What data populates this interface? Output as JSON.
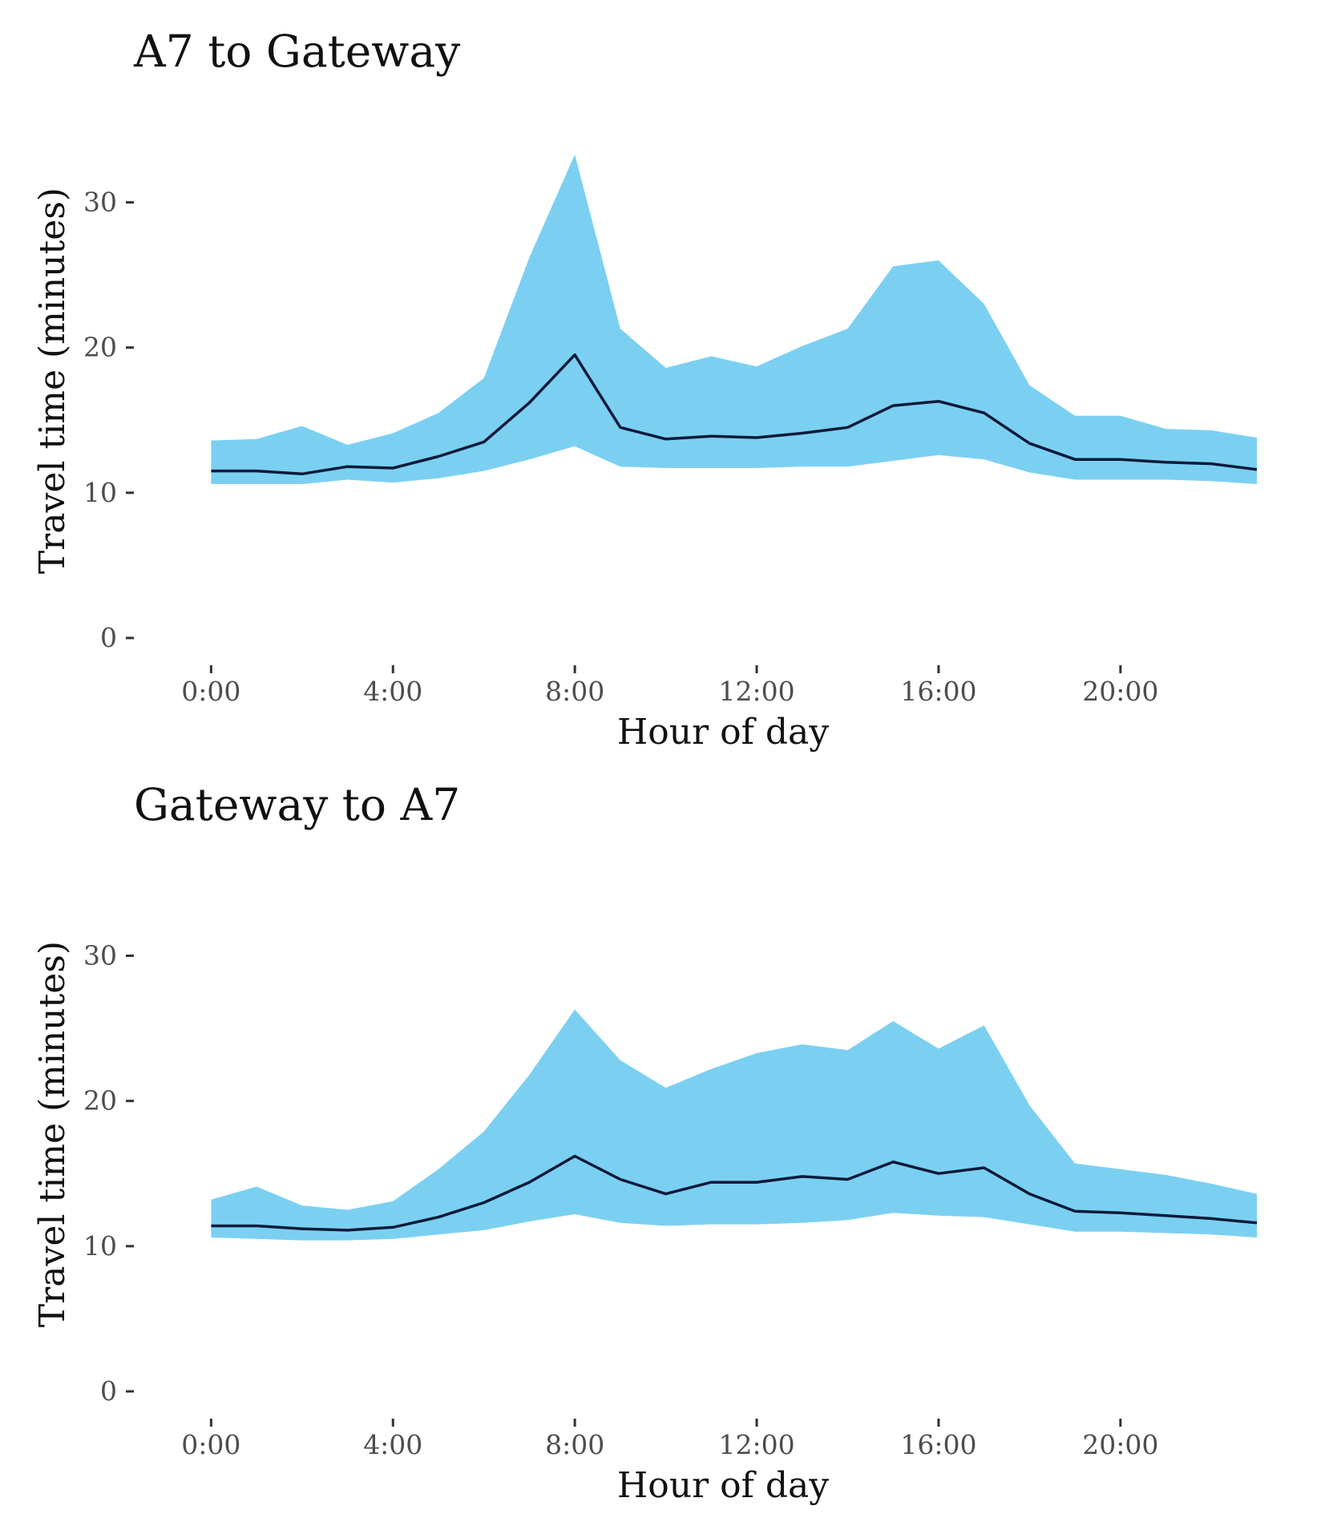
{
  "chart_data": [
    {
      "type": "area",
      "title": "A7 to Gateway",
      "xlabel": "Hour of day",
      "ylabel": "Travel time (minutes)",
      "x_tick_labels": [
        "0:00",
        "4:00",
        "8:00",
        "12:00",
        "16:00",
        "20:00"
      ],
      "x_tick_values": [
        0,
        4,
        8,
        12,
        16,
        20
      ],
      "y_ticks": [
        0,
        10,
        20,
        30
      ],
      "xlim": [
        -0.5,
        23
      ],
      "ylim": [
        0,
        34
      ],
      "grid": false,
      "x": [
        0,
        1,
        2,
        3,
        4,
        5,
        6,
        7,
        8,
        9,
        10,
        11,
        12,
        13,
        14,
        15,
        16,
        17,
        18,
        19,
        20,
        21,
        22,
        23
      ],
      "series": [
        {
          "role": "band",
          "color": "#7bd0f2",
          "lower": [
            10.6,
            10.6,
            10.6,
            10.9,
            10.7,
            11.0,
            11.5,
            12.3,
            13.2,
            11.8,
            11.7,
            11.7,
            11.7,
            11.8,
            11.8,
            12.2,
            12.6,
            12.3,
            11.4,
            10.9,
            10.9,
            10.9,
            10.8,
            10.6
          ],
          "upper": [
            13.6,
            13.7,
            14.6,
            13.3,
            14.1,
            15.5,
            17.9,
            26.2,
            33.3,
            21.3,
            18.6,
            19.4,
            18.7,
            20.1,
            21.3,
            25.6,
            26.0,
            23.0,
            17.4,
            15.3,
            15.3,
            14.4,
            14.3,
            13.8
          ]
        },
        {
          "role": "line",
          "color": "#0b1a3a",
          "values": [
            11.5,
            11.5,
            11.3,
            11.8,
            11.7,
            12.5,
            13.5,
            16.2,
            19.5,
            14.5,
            13.7,
            13.9,
            13.8,
            14.1,
            14.5,
            16.0,
            16.3,
            15.5,
            13.4,
            12.3,
            12.3,
            12.1,
            12.0,
            11.6
          ]
        }
      ]
    },
    {
      "type": "area",
      "title": "Gateway to A7",
      "xlabel": "Hour of day",
      "ylabel": "Travel time (minutes)",
      "x_tick_labels": [
        "0:00",
        "4:00",
        "8:00",
        "12:00",
        "16:00",
        "20:00"
      ],
      "x_tick_values": [
        0,
        4,
        8,
        12,
        16,
        20
      ],
      "y_ticks": [
        0,
        10,
        20,
        30
      ],
      "xlim": [
        -0.5,
        23
      ],
      "ylim": [
        0,
        34
      ],
      "grid": false,
      "x": [
        0,
        1,
        2,
        3,
        4,
        5,
        6,
        7,
        8,
        9,
        10,
        11,
        12,
        13,
        14,
        15,
        16,
        17,
        18,
        19,
        20,
        21,
        22,
        23
      ],
      "series": [
        {
          "role": "band",
          "color": "#7bd0f2",
          "lower": [
            10.6,
            10.5,
            10.4,
            10.4,
            10.5,
            10.8,
            11.1,
            11.7,
            12.2,
            11.6,
            11.4,
            11.5,
            11.5,
            11.6,
            11.8,
            12.3,
            12.1,
            12.0,
            11.5,
            11.0,
            11.0,
            10.9,
            10.8,
            10.6
          ],
          "upper": [
            13.2,
            14.1,
            12.8,
            12.5,
            13.1,
            15.3,
            17.9,
            21.8,
            26.3,
            22.8,
            20.9,
            22.2,
            23.3,
            23.9,
            23.5,
            25.5,
            23.6,
            25.2,
            19.7,
            15.7,
            15.3,
            14.9,
            14.3,
            13.6
          ]
        },
        {
          "role": "line",
          "color": "#0b1a3a",
          "values": [
            11.4,
            11.4,
            11.2,
            11.1,
            11.3,
            12.0,
            13.0,
            14.4,
            16.2,
            14.6,
            13.6,
            14.4,
            14.4,
            14.8,
            14.6,
            15.8,
            15.0,
            15.4,
            13.6,
            12.4,
            12.3,
            12.1,
            11.9,
            11.6
          ]
        }
      ]
    }
  ]
}
